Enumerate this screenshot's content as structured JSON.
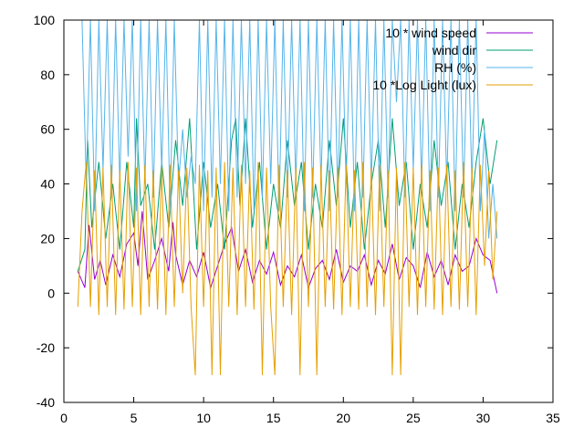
{
  "chart_data": {
    "type": "line",
    "xlim": [
      0,
      35
    ],
    "ylim": [
      -40,
      100
    ],
    "x_ticks": [
      0,
      5,
      10,
      15,
      20,
      25,
      30,
      35
    ],
    "y_ticks": [
      -40,
      -20,
      0,
      20,
      40,
      60,
      80,
      100
    ],
    "grid": false,
    "legend_position": "top-right",
    "series": [
      {
        "name": "10 * wind speed",
        "color": "#9400d3",
        "x": [
          1.0,
          1.5,
          1.8,
          2.2,
          2.6,
          3.0,
          3.5,
          4.0,
          4.5,
          5.0,
          5.3,
          5.6,
          6.0,
          6.5,
          7.0,
          7.5,
          7.8,
          8.0,
          8.5,
          9.0,
          9.5,
          10.0,
          10.5,
          11.0,
          11.5,
          12.0,
          12.5,
          13.0,
          13.5,
          14.0,
          14.5,
          15.0,
          15.5,
          16.0,
          16.5,
          17.0,
          17.5,
          18.0,
          18.5,
          19.0,
          19.5,
          20.0,
          20.5,
          21.0,
          21.5,
          22.0,
          22.5,
          23.0,
          23.5,
          24.0,
          24.5,
          25.0,
          25.5,
          26.0,
          26.5,
          27.0,
          27.5,
          28.0,
          28.5,
          29.0,
          29.5,
          30.0,
          30.5,
          31.0
        ],
        "values": [
          8,
          2,
          25,
          5,
          12,
          3,
          14,
          6,
          18,
          22,
          10,
          30,
          5,
          12,
          20,
          8,
          26,
          14,
          3,
          12,
          6,
          15,
          2,
          10,
          18,
          24,
          8,
          16,
          4,
          12,
          7,
          15,
          3,
          10,
          6,
          14,
          2,
          9,
          12,
          5,
          16,
          4,
          10,
          8,
          14,
          3,
          12,
          7,
          18,
          5,
          13,
          10,
          2,
          15,
          6,
          12,
          3,
          14,
          8,
          10,
          20,
          14,
          12,
          0
        ]
      },
      {
        "name": "wind dir",
        "color": "#009e73",
        "x": [
          1.0,
          1.5,
          1.7,
          2.0,
          2.5,
          3.0,
          3.5,
          4.0,
          4.5,
          5.0,
          5.2,
          5.5,
          6.0,
          6.5,
          7.0,
          7.5,
          8.0,
          8.5,
          9.0,
          9.5,
          10.0,
          10.5,
          11.0,
          11.5,
          12.0,
          12.3,
          12.6,
          13.0,
          13.5,
          14.0,
          14.5,
          15.0,
          15.5,
          16.0,
          16.5,
          17.0,
          17.5,
          18.0,
          18.5,
          19.0,
          19.5,
          20.0,
          20.5,
          21.0,
          21.5,
          22.0,
          22.5,
          23.0,
          23.5,
          24.0,
          24.5,
          25.0,
          25.5,
          26.0,
          26.5,
          27.0,
          27.5,
          28.0,
          28.5,
          29.0,
          29.5,
          30.0,
          30.5,
          31.0
        ],
        "values": [
          8,
          16,
          56,
          24,
          48,
          20,
          40,
          16,
          48,
          24,
          64,
          32,
          40,
          16,
          48,
          24,
          56,
          32,
          64,
          16,
          48,
          24,
          40,
          16,
          56,
          64,
          32,
          64,
          24,
          48,
          16,
          40,
          24,
          56,
          32,
          48,
          16,
          40,
          24,
          56,
          32,
          64,
          24,
          48,
          16,
          40,
          56,
          24,
          64,
          32,
          48,
          16,
          40,
          24,
          56,
          32,
          48,
          16,
          40,
          24,
          48,
          64,
          40,
          56
        ]
      },
      {
        "name": "RH (%)",
        "color": "#56b4e9",
        "x": [
          1.0,
          1.3,
          1.6,
          1.9,
          2.2,
          2.5,
          2.8,
          3.1,
          3.4,
          3.7,
          4.0,
          4.3,
          4.6,
          4.9,
          5.2,
          5.5,
          5.8,
          6.1,
          6.4,
          6.7,
          7.0,
          7.3,
          7.6,
          7.9,
          8.2,
          8.5,
          8.8,
          9.1,
          9.4,
          9.7,
          10.0,
          10.3,
          10.6,
          10.9,
          11.2,
          11.5,
          11.8,
          12.1,
          12.4,
          12.7,
          13.0,
          13.3,
          13.6,
          13.9,
          14.2,
          14.5,
          14.8,
          15.1,
          15.4,
          15.7,
          16.0,
          16.3,
          16.6,
          16.9,
          17.2,
          17.5,
          17.8,
          18.1,
          18.4,
          18.7,
          19.0,
          19.3,
          19.6,
          19.9,
          20.2,
          20.5,
          20.8,
          21.1,
          21.4,
          21.7,
          22.0,
          22.3,
          22.6,
          22.9,
          23.2,
          23.5,
          23.8,
          24.1,
          24.4,
          24.7,
          25.0,
          25.3,
          25.6,
          25.9,
          26.2,
          26.5,
          26.8,
          27.1,
          27.4,
          27.7,
          28.0,
          28.3,
          28.6,
          28.9,
          29.2,
          29.5,
          29.8,
          30.1,
          30.4,
          30.7,
          31.0
        ],
        "values": [
          100,
          100,
          40,
          100,
          30,
          100,
          45,
          100,
          35,
          100,
          40,
          100,
          50,
          100,
          30,
          100,
          40,
          100,
          35,
          100,
          45,
          100,
          30,
          100,
          40,
          60,
          35,
          50,
          40,
          100,
          30,
          100,
          35,
          100,
          40,
          100,
          30,
          100,
          35,
          100,
          40,
          100,
          30,
          100,
          35,
          100,
          40,
          100,
          30,
          100,
          35,
          100,
          40,
          100,
          30,
          100,
          35,
          100,
          40,
          100,
          30,
          100,
          35,
          100,
          40,
          100,
          30,
          100,
          35,
          100,
          40,
          100,
          30,
          100,
          35,
          100,
          70,
          100,
          35,
          100,
          45,
          100,
          40,
          100,
          30,
          100,
          35,
          100,
          40,
          100,
          30,
          100,
          35,
          100,
          40,
          100,
          30,
          60,
          20,
          40,
          20
        ]
      },
      {
        "name": "10 *Log Light (lux)",
        "color": "#e69f00",
        "x": [
          1.0,
          1.3,
          1.6,
          1.9,
          2.2,
          2.5,
          2.8,
          3.1,
          3.4,
          3.7,
          4.0,
          4.3,
          4.6,
          4.9,
          5.2,
          5.5,
          5.8,
          6.1,
          6.4,
          6.7,
          7.0,
          7.3,
          7.6,
          7.9,
          8.2,
          8.5,
          8.8,
          9.1,
          9.4,
          9.7,
          10.0,
          10.3,
          10.6,
          10.9,
          11.2,
          11.5,
          11.8,
          12.1,
          12.4,
          12.7,
          13.0,
          13.3,
          13.6,
          13.9,
          14.2,
          14.5,
          14.8,
          15.1,
          15.4,
          15.7,
          16.0,
          16.3,
          16.6,
          16.9,
          17.2,
          17.5,
          17.8,
          18.1,
          18.4,
          18.7,
          19.0,
          19.3,
          19.6,
          19.9,
          20.2,
          20.5,
          20.8,
          21.1,
          21.4,
          21.7,
          22.0,
          22.3,
          22.6,
          22.9,
          23.2,
          23.5,
          23.8,
          24.1,
          24.4,
          24.7,
          25.0,
          25.3,
          25.6,
          25.9,
          26.2,
          26.5,
          26.8,
          27.1,
          27.4,
          27.7,
          28.0,
          28.3,
          28.6,
          28.9,
          29.2,
          29.5,
          29.8,
          30.1,
          30.4,
          30.7,
          31.0
        ],
        "values": [
          -5,
          30,
          48,
          -5,
          45,
          -8,
          46,
          -5,
          47,
          -8,
          45,
          -6,
          48,
          -5,
          46,
          -8,
          47,
          -5,
          45,
          -6,
          46,
          -8,
          47,
          -5,
          45,
          0,
          46,
          -5,
          -30,
          47,
          -5,
          45,
          -30,
          46,
          -30,
          48,
          -5,
          46,
          -8,
          47,
          -5,
          45,
          -6,
          48,
          -30,
          46,
          -5,
          -30,
          47,
          -5,
          45,
          -8,
          46,
          -30,
          48,
          -5,
          46,
          -30,
          47,
          -5,
          45,
          -6,
          46,
          -8,
          47,
          -5,
          45,
          -6,
          48,
          -5,
          46,
          -8,
          47,
          -5,
          45,
          -30,
          46,
          -30,
          48,
          -5,
          46,
          -8,
          47,
          -5,
          45,
          -6,
          46,
          -8,
          47,
          -5,
          45,
          -6,
          48,
          -5,
          46,
          -8,
          47,
          10,
          45,
          5,
          30
        ]
      }
    ]
  }
}
